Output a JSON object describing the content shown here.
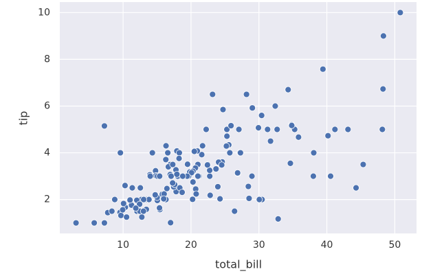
{
  "chart_data": {
    "type": "scatter",
    "xlabel": "total_bill",
    "ylabel": "tip",
    "color": "#4c72b0",
    "background": "#eaeaf2",
    "grid": true,
    "xlim": [
      0.68,
      53.2
    ],
    "ylim": [
      0.55,
      10.45
    ],
    "xticks": [
      10,
      20,
      30,
      40,
      50
    ],
    "yticks": [
      2,
      4,
      6,
      8,
      10
    ],
    "x": [
      16.99,
      10.34,
      21.01,
      23.68,
      24.59,
      25.29,
      8.77,
      26.88,
      15.04,
      14.78,
      10.27,
      35.26,
      15.42,
      18.43,
      14.83,
      21.58,
      10.33,
      16.29,
      16.97,
      20.65,
      17.92,
      20.29,
      15.77,
      39.42,
      19.82,
      17.81,
      13.37,
      12.69,
      21.7,
      19.65,
      9.55,
      18.35,
      15.06,
      20.69,
      17.78,
      24.06,
      16.31,
      16.93,
      18.69,
      31.27,
      16.04,
      17.46,
      13.94,
      9.68,
      30.4,
      18.29,
      22.23,
      32.4,
      28.55,
      18.04,
      12.54,
      10.29,
      34.81,
      9.94,
      25.56,
      19.49,
      38.01,
      26.41,
      11.24,
      48.27,
      20.29,
      13.81,
      11.02,
      18.29,
      17.59,
      20.08,
      16.45,
      3.07,
      20.23,
      15.01,
      12.02,
      17.07,
      26.86,
      25.28,
      14.73,
      10.51,
      17.92,
      27.2,
      22.76,
      17.29,
      19.44,
      16.66,
      10.07,
      32.68,
      15.98,
      34.83,
      13.03,
      18.28,
      24.71,
      21.16,
      28.97,
      22.49,
      5.75,
      16.32,
      22.75,
      40.17,
      27.28,
      12.03,
      21.01,
      12.46,
      11.35,
      15.38,
      44.3,
      22.42,
      20.92,
      15.36,
      20.49,
      25.21,
      18.24,
      14.31,
      14.0,
      7.25,
      38.07,
      23.95,
      25.71,
      17.31,
      29.93,
      50.81,
      48.33,
      48.17,
      45.35,
      43.11,
      41.19,
      40.55,
      7.25,
      32.83,
      23.17,
      28.17,
      34.3,
      29.03,
      30.46,
      31.71,
      35.83,
      34.63,
      7.74,
      8.35,
      12.43,
      13.42,
      11.87,
      13.0,
      16.58,
      22.82,
      24.52,
      28.44,
      30.06,
      25.89,
      27.05,
      24.27,
      12.76,
      9.6,
      20.76,
      18.78
    ],
    "values": [
      1.01,
      1.66,
      3.5,
      3.31,
      3.61,
      4.71,
      2,
      3.12,
      1.96,
      3.23,
      1.71,
      5,
      1.57,
      3,
      3.02,
      3.92,
      1.67,
      3.71,
      3.5,
      3.35,
      4.08,
      2.75,
      2.23,
      7.58,
      3.18,
      2.34,
      2,
      2,
      4.3,
      3,
      1.45,
      2.5,
      3,
      2.45,
      3.27,
      3.6,
      2,
      3.07,
      2.31,
      5,
      2.24,
      2.54,
      3.06,
      1.32,
      5.6,
      3,
      5,
      6,
      2.05,
      3,
      2.5,
      2.6,
      5.2,
      1.56,
      4.34,
      3.51,
      3,
      1.5,
      1.76,
      6.73,
      3.21,
      2,
      1.98,
      3.76,
      2.64,
      3.15,
      2.47,
      1,
      2.01,
      2.09,
      1.97,
      3,
      3.14,
      5,
      2.2,
      1.25,
      3.08,
      4,
      3,
      2.71,
      3,
      3.4,
      1.83,
      5,
      2.03,
      5.17,
      2,
      4,
      5.85,
      3,
      3,
      3.5,
      1,
      4.3,
      3.25,
      4.73,
      4,
      1.5,
      3,
      1.5,
      2.5,
      3,
      2.5,
      3.48,
      4.08,
      1.64,
      4.06,
      4.29,
      3.76,
      4,
      3,
      1,
      4,
      2.55,
      4,
      3.5,
      5.07,
      10,
      9,
      5,
      3.5,
      5,
      5,
      3,
      5.15,
      1.17,
      6.5,
      6.5,
      6.7,
      5.92,
      2,
      4.5,
      4.67,
      3.55,
      1.44,
      1.5,
      1.8,
      1.58,
      1.63,
      1.5,
      4,
      2.18,
      3.48,
      2.56,
      2,
      5.16,
      5,
      2.03,
      1.25,
      4,
      2.24,
      3
    ]
  }
}
